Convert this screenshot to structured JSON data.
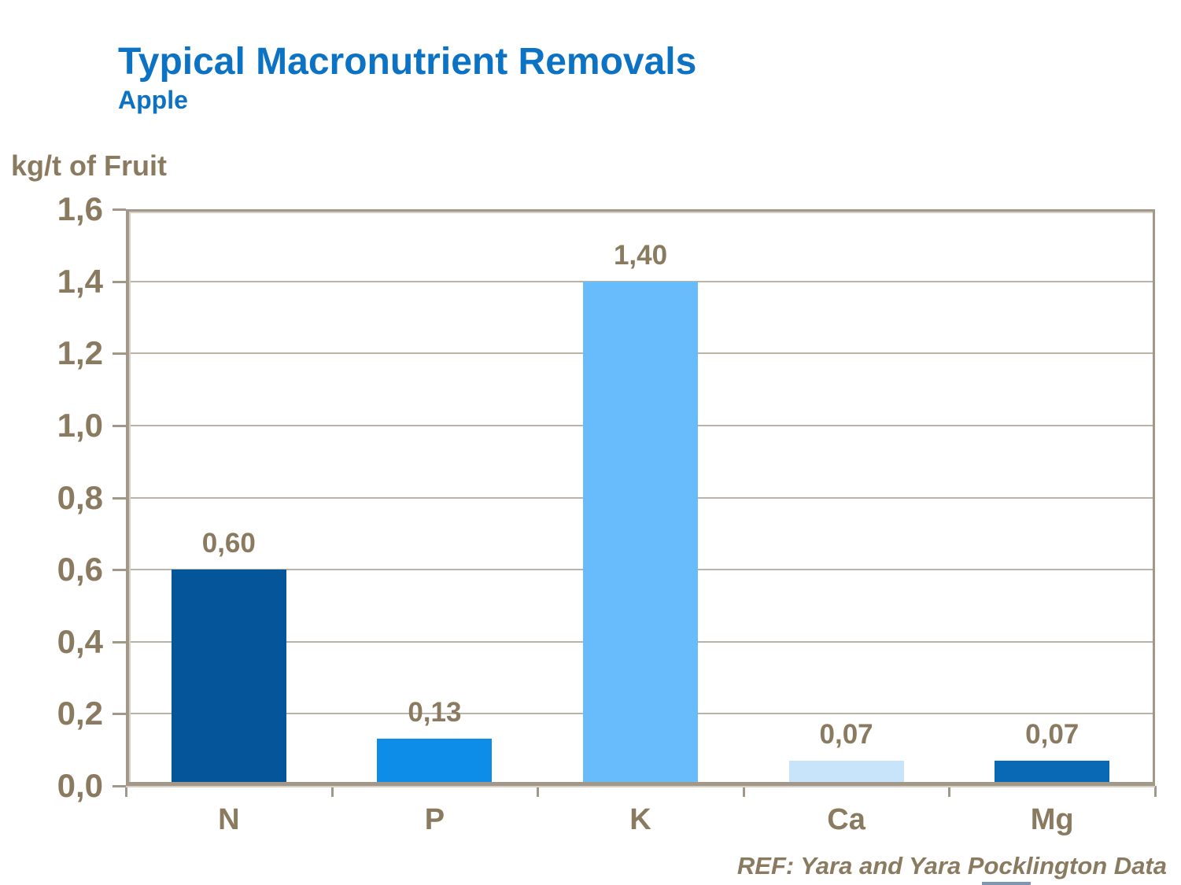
{
  "header": {
    "title": "Typical Macronutrient Removals",
    "subtitle": "Apple"
  },
  "chart_data": {
    "type": "bar",
    "title": "Typical Macronutrient Removals",
    "subtitle": "Apple",
    "ylabel": "kg/t of Fruit",
    "xlabel": "",
    "categories": [
      "N",
      "P",
      "K",
      "Ca",
      "Mg"
    ],
    "values": [
      0.6,
      0.13,
      1.4,
      0.07,
      0.07
    ],
    "value_labels": [
      "0,60",
      "0,13",
      "1,40",
      "0,07",
      "0,07"
    ],
    "bar_colors": [
      "#05559A",
      "#0E8DE8",
      "#69BCFC",
      "#C8E4FB",
      "#0A69B4"
    ],
    "ylim": [
      0,
      1.6
    ],
    "ytick_step": 0.2,
    "ytick_labels": [
      "0,0",
      "0,2",
      "0,4",
      "0,6",
      "0,8",
      "1,0",
      "1,2",
      "1,4",
      "1,6"
    ],
    "grid": true,
    "legend_position": "none",
    "decimal_separator": ","
  },
  "footer": {
    "ref": "REF: Yara and Yara Pocklington Data"
  },
  "colors": {
    "title_blue": "#0C72C4",
    "text_brown": "#8A7A5F",
    "frame_dark": "#A1988A",
    "frame_light": "#D8D0C4",
    "gridline": "#BCB3A6",
    "background": "#FFFFFF",
    "clipped_footer_blue": "#7E96AF"
  }
}
